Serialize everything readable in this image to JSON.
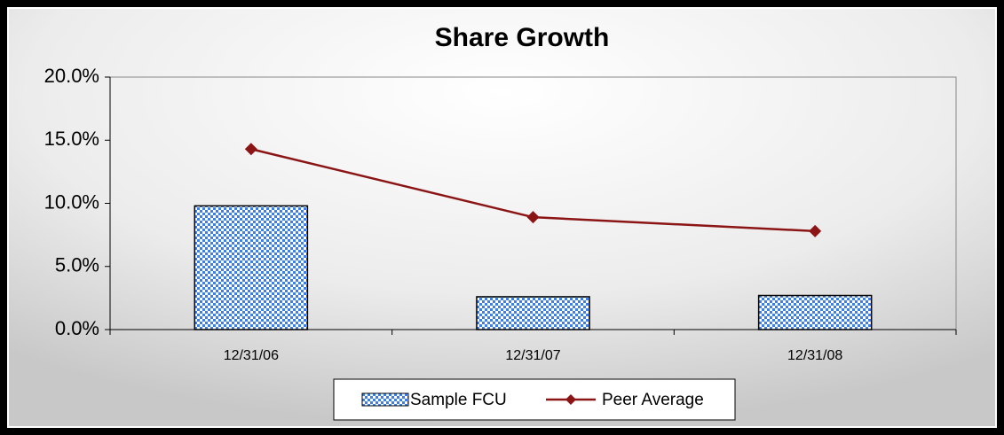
{
  "chart_data": {
    "type": "bar",
    "title": "Share  Growth",
    "categories": [
      "12/31/06",
      "12/31/07",
      "12/31/08"
    ],
    "series": [
      {
        "name": "Sample FCU",
        "type": "bar",
        "color": "#3d7fe6",
        "values": [
          9.8,
          2.6,
          2.7
        ]
      },
      {
        "name": "Peer Average",
        "type": "line",
        "color": "#8b1414",
        "values": [
          14.3,
          8.9,
          7.8
        ]
      }
    ],
    "ylim": [
      0,
      20
    ],
    "yticks": [
      {
        "value": 0,
        "label": "0.0%"
      },
      {
        "value": 5,
        "label": "5.0%"
      },
      {
        "value": 10,
        "label": "10.0%"
      },
      {
        "value": 15,
        "label": "15.0%"
      },
      {
        "value": 20,
        "label": "20.0%"
      }
    ],
    "legend": "bottom"
  }
}
